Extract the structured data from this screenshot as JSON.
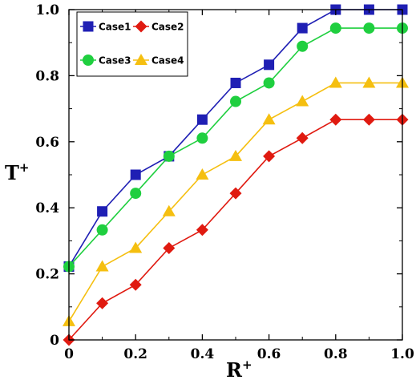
{
  "chart_data": {
    "type": "line",
    "xlabel": "R",
    "xlabel_sup": "+",
    "ylabel": "T",
    "ylabel_sup": "+",
    "xlim": [
      0,
      1.0
    ],
    "ylim": [
      0,
      1.0
    ],
    "x_ticks": [
      0,
      0.2,
      0.4,
      0.6,
      0.8,
      1.0
    ],
    "x_tick_labels": [
      "0",
      "0.2",
      "0.4",
      "0.6",
      "0.8",
      "1.0"
    ],
    "y_ticks": [
      0,
      0.2,
      0.4,
      0.6,
      0.8,
      1.0
    ],
    "y_tick_labels": [
      "0",
      "0.2",
      "0.4",
      "0.6",
      "0.8",
      "1.0"
    ],
    "grid": false,
    "legend_position": "top-left",
    "x": [
      0,
      0.1,
      0.2,
      0.3,
      0.4,
      0.5,
      0.6,
      0.7,
      0.8,
      0.9,
      1.0
    ],
    "series": [
      {
        "name": "Case1",
        "color": "#1f1fb4",
        "marker": "square",
        "values": [
          0.222,
          0.389,
          0.5,
          0.556,
          0.667,
          0.778,
          0.833,
          0.944,
          1.0,
          1.0,
          1.0
        ]
      },
      {
        "name": "Case2",
        "color": "#e01a10",
        "marker": "diamond",
        "values": [
          0.0,
          0.111,
          0.167,
          0.278,
          0.333,
          0.444,
          0.556,
          0.611,
          0.667,
          0.667,
          0.667
        ]
      },
      {
        "name": "Case3",
        "color": "#1fcf3f",
        "marker": "circle",
        "values": [
          0.222,
          0.333,
          0.444,
          0.556,
          0.611,
          0.722,
          0.778,
          0.889,
          0.944,
          0.944,
          0.944
        ]
      },
      {
        "name": "Case4",
        "color": "#f5bf10",
        "marker": "triangle",
        "values": [
          0.056,
          0.222,
          0.278,
          0.389,
          0.5,
          0.556,
          0.667,
          0.722,
          0.778,
          0.778,
          0.778
        ]
      }
    ]
  }
}
